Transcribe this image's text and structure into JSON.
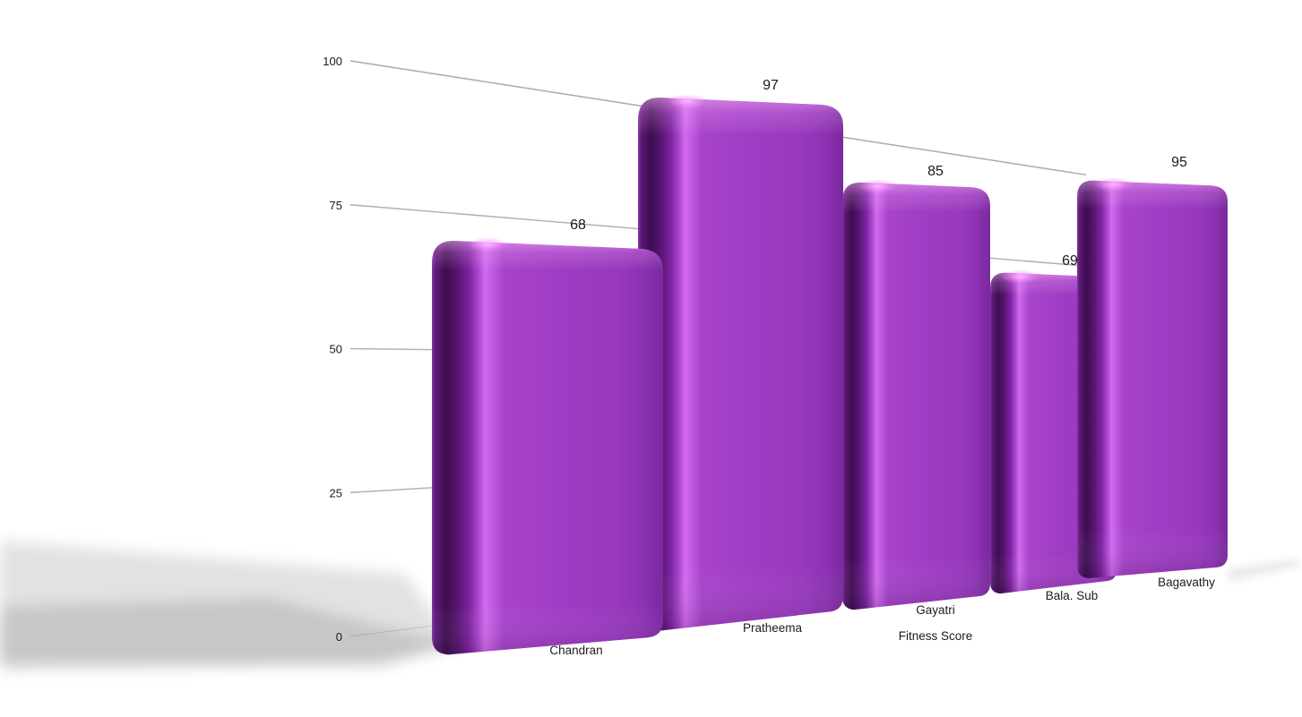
{
  "chart_data": {
    "type": "bar",
    "style": "3d-glossy-perspective",
    "title": "",
    "categories": [
      "Chandran",
      "Pratheema",
      "Gayatri",
      "Bala. Sub",
      "Bagavathy"
    ],
    "values": [
      68,
      97,
      85,
      69,
      95
    ],
    "xlabel": "Fitness Score",
    "yticks": [
      "0",
      "25",
      "50",
      "75",
      "100"
    ],
    "ylim": [
      0,
      100
    ],
    "grid": true,
    "legend": false,
    "colors": {
      "bar_face": "#9d3dc6",
      "bar_highlight": "#d26aee",
      "bar_edge_dark": "#3f0d52",
      "gridline": "#b0b0b0",
      "text": "#1b1b1b",
      "background": "#ffffff"
    }
  }
}
